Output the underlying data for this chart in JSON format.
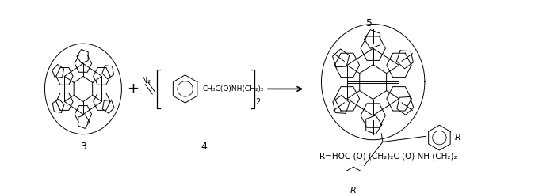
{
  "figsize": [
    6.99,
    2.44
  ],
  "dpi": 100,
  "bg_color": "#ffffff",
  "label_3": "3",
  "label_4": "4",
  "label_5": "5",
  "plus_text": "+",
  "r_label": "R",
  "r_label2": "R",
  "formula_text": "R=HOC (O) (CH₂)₂C (O) NH (CH₂)₂–",
  "compound4_text": "CH₃C(O)NH(CH₂)₂",
  "n2_text": "N₂",
  "subscript_2": "2",
  "line_color": "#000000",
  "text_color": "#000000",
  "font_size_label": 9,
  "font_size_formula": 7.5,
  "font_size_struct": 7.0,
  "lw": 0.7
}
